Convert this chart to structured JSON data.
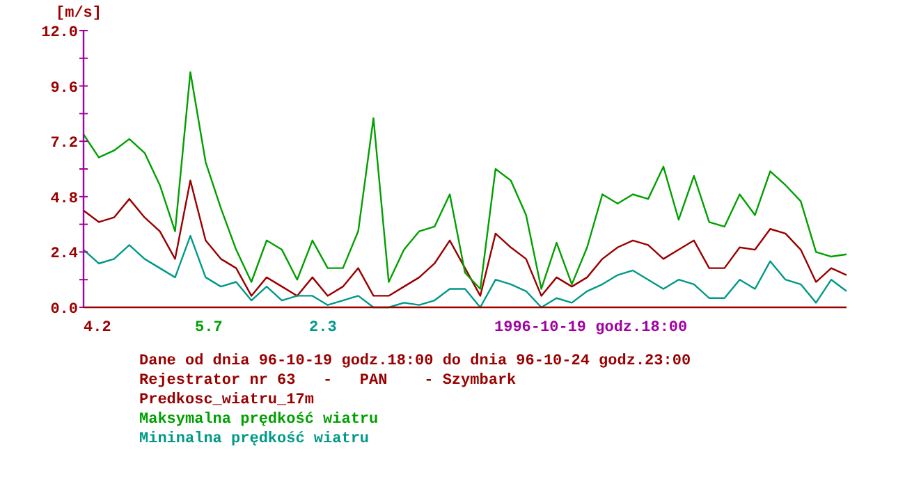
{
  "chart_data": {
    "type": "line",
    "ylabel": "[m/s]",
    "categories": [
      null,
      null,
      null,
      null,
      null,
      null,
      null,
      null,
      null,
      null,
      null,
      null,
      null,
      null,
      null,
      null,
      null,
      null,
      null,
      null,
      null,
      null,
      null,
      null,
      null,
      null,
      null,
      null,
      null,
      null,
      null,
      null,
      null,
      null,
      null,
      null,
      null,
      null,
      null,
      null,
      null,
      null,
      null,
      null,
      null,
      null,
      null,
      null,
      null,
      null,
      null
    ],
    "ylim": [
      0,
      12
    ],
    "yticks": [
      {
        "value": 0,
        "label": "0.0"
      },
      {
        "value": 1.2,
        "label": null
      },
      2.4,
      {
        "value": 3.6,
        "label": null
      },
      4.8,
      {
        "value": 6,
        "label": null
      },
      7.2,
      {
        "value": 8.4,
        "label": null
      },
      9.6,
      {
        "value": 10.8,
        "label": null
      },
      {
        "value": 12,
        "label": "12.0"
      }
    ],
    "grid": false,
    "marker": "none",
    "line_style": "solid",
    "series": [
      {
        "name": "Predkosc_wiatru_17m",
        "color": "#990000",
        "values": [
          4.2,
          3.7,
          3.9,
          4.7,
          3.9,
          3.3,
          2.1,
          5.5,
          2.9,
          2.1,
          1.7,
          0.5,
          1.3,
          0.9,
          0.5,
          1.3,
          0.5,
          0.9,
          1.7,
          0.5,
          0.5,
          0.9,
          1.3,
          1.9,
          2.9,
          1.7,
          0.5,
          3.2,
          2.6,
          2.1,
          0.5,
          1.3,
          0.9,
          1.3,
          2.1,
          2.6,
          2.9,
          2.7,
          2.1,
          2.5,
          2.9,
          1.7,
          1.7,
          2.6,
          2.5,
          3.4,
          3.2,
          2.5,
          1.1,
          1.7,
          1.4
        ]
      },
      {
        "name": "Maksymalna prędkość wiatru",
        "color": "#00a000",
        "values": [
          7.5,
          6.5,
          6.8,
          7.3,
          6.7,
          5.3,
          3.3,
          10.2,
          6.3,
          4.3,
          2.5,
          1.1,
          2.9,
          2.5,
          1.2,
          2.9,
          1.7,
          1.7,
          3.3,
          8.2,
          1.1,
          2.5,
          3.3,
          3.5,
          4.9,
          1.5,
          0.8,
          6.0,
          5.5,
          4.0,
          0.8,
          2.8,
          1.0,
          2.6,
          4.9,
          4.5,
          4.9,
          4.7,
          6.1,
          3.8,
          5.7,
          3.7,
          3.5,
          4.9,
          4.0,
          5.9,
          5.3,
          4.6,
          2.4,
          2.2,
          2.3
        ]
      },
      {
        "name": "Mininalna prędkość wiatru",
        "color": "#009988",
        "values": [
          2.5,
          1.9,
          2.1,
          2.7,
          2.1,
          1.7,
          1.3,
          3.1,
          1.3,
          0.9,
          1.1,
          0.3,
          0.9,
          0.3,
          0.5,
          0.5,
          0.1,
          0.3,
          0.5,
          0,
          0,
          0.2,
          0.1,
          0.3,
          0.8,
          0.8,
          0,
          1.2,
          1.0,
          0.7,
          0,
          0.4,
          0.2,
          0.7,
          1.0,
          1.4,
          1.6,
          1.2,
          0.8,
          1.2,
          1.0,
          0.4,
          0.4,
          1.2,
          0.8,
          2.0,
          1.2,
          1.0,
          0.2,
          1.2,
          0.7
        ]
      }
    ],
    "annotations": [
      "4.2",
      "5.7",
      "2.3",
      "1996-10-19 godz.18:00",
      "Dane od dnia 96-10-19 godz.18:00 do dnia 96-10-24 godz.23:00",
      "Rejestrator nr 63   -   PAN    - Szymbark"
    ]
  }
}
